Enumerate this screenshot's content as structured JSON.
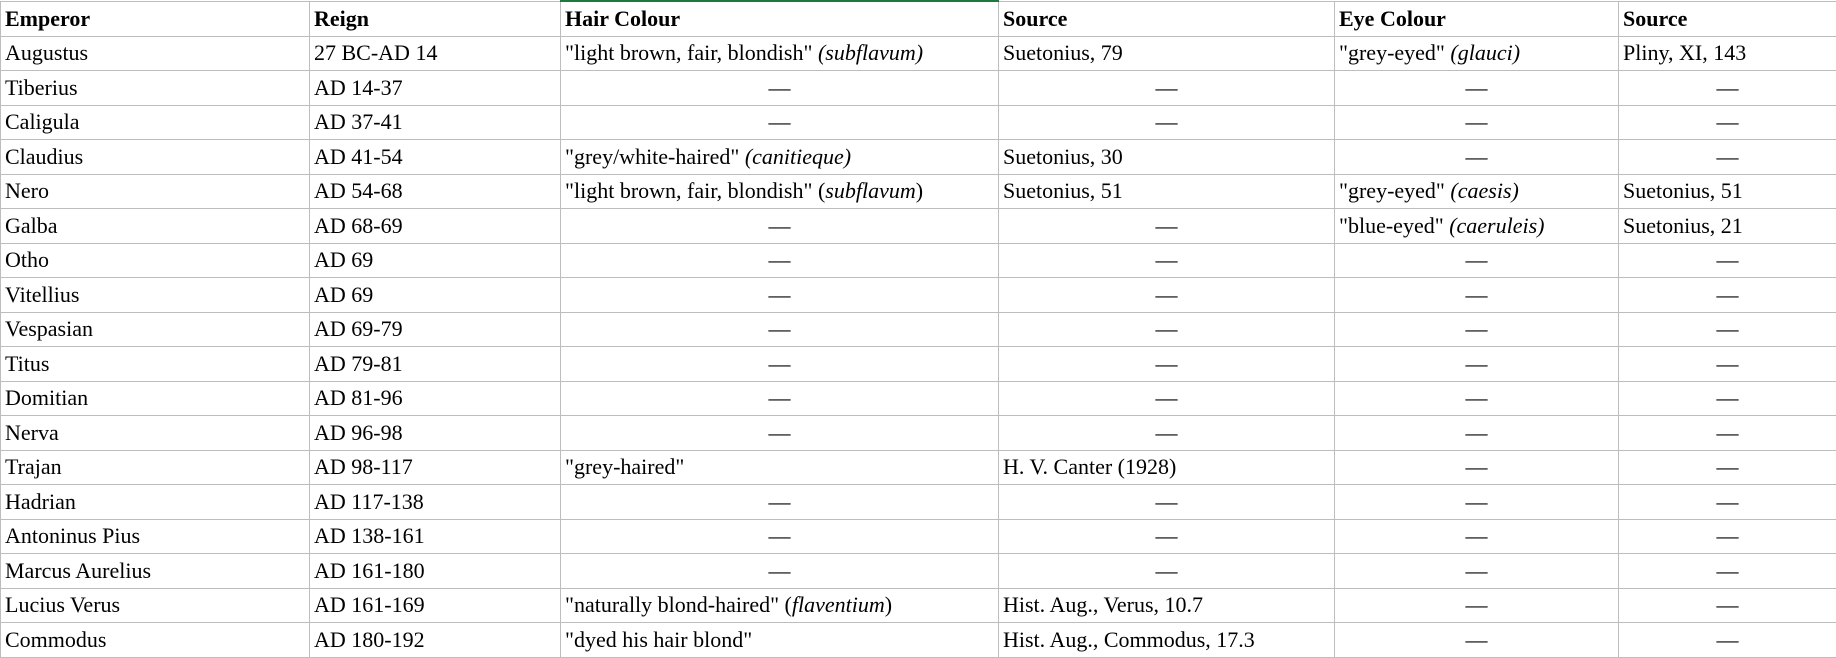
{
  "headers": [
    "Emperor",
    "Reign",
    "Hair Colour",
    "Source",
    "Eye Colour",
    "Source"
  ],
  "selected_color": "#1e7a3c",
  "rows": [
    [
      [
        [
          "Augustus",
          false
        ]
      ],
      [
        [
          "27 BC-AD 14",
          false
        ]
      ],
      [
        [
          "\"light brown, fair, blondish\" ",
          false
        ],
        [
          "(subflavum)",
          true
        ]
      ],
      [
        [
          "Suetonius, 79",
          false
        ]
      ],
      [
        [
          "\"grey-eyed\" ",
          false
        ],
        [
          "(glauci)",
          true
        ]
      ],
      [
        [
          "Pliny, XI, 143",
          false
        ]
      ]
    ],
    [
      [
        [
          "Tiberius",
          false
        ]
      ],
      [
        [
          "AD 14-37",
          false
        ]
      ],
      "—",
      "—",
      "—",
      "—"
    ],
    [
      [
        [
          "Caligula",
          false
        ]
      ],
      [
        [
          "AD 37-41",
          false
        ]
      ],
      "—",
      "—",
      "—",
      "—"
    ],
    [
      [
        [
          "Claudius",
          false
        ]
      ],
      [
        [
          "AD 41-54",
          false
        ]
      ],
      [
        [
          "\"grey/white-haired\" ",
          false
        ],
        [
          "(canitieque)",
          true
        ]
      ],
      [
        [
          "Suetonius, 30",
          false
        ]
      ],
      "—",
      "—"
    ],
    [
      [
        [
          "Nero",
          false
        ]
      ],
      [
        [
          "AD 54-68",
          false
        ]
      ],
      [
        [
          "\"light brown, fair, blondish\" (",
          false
        ],
        [
          "subflavum",
          true
        ],
        [
          ")",
          false
        ]
      ],
      [
        [
          "Suetonius, 51",
          false
        ]
      ],
      [
        [
          "\"grey-eyed\" ",
          false
        ],
        [
          "(caesis)",
          true
        ]
      ],
      [
        [
          "Suetonius, 51",
          false
        ]
      ]
    ],
    [
      [
        [
          "Galba",
          false
        ]
      ],
      [
        [
          "AD 68-69",
          false
        ]
      ],
      "—",
      "—",
      [
        [
          "\"blue-eyed\" ",
          false
        ],
        [
          "(caeruleis)",
          true
        ]
      ],
      [
        [
          "Suetonius, 21",
          false
        ]
      ]
    ],
    [
      [
        [
          "Otho",
          false
        ]
      ],
      [
        [
          "AD 69",
          false
        ]
      ],
      "—",
      "—",
      "—",
      "—"
    ],
    [
      [
        [
          "Vitellius",
          false
        ]
      ],
      [
        [
          "AD 69",
          false
        ]
      ],
      "—",
      "—",
      "—",
      "—"
    ],
    [
      [
        [
          "Vespasian",
          false
        ]
      ],
      [
        [
          "AD 69-79",
          false
        ]
      ],
      "—",
      "—",
      "—",
      "—"
    ],
    [
      [
        [
          "Titus",
          false
        ]
      ],
      [
        [
          "AD 79-81",
          false
        ]
      ],
      "—",
      "—",
      "—",
      "—"
    ],
    [
      [
        [
          "Domitian",
          false
        ]
      ],
      [
        [
          "AD 81-96",
          false
        ]
      ],
      "—",
      "—",
      "—",
      "—"
    ],
    [
      [
        [
          "Nerva",
          false
        ]
      ],
      [
        [
          "AD 96-98",
          false
        ]
      ],
      "—",
      "—",
      "—",
      "—"
    ],
    [
      [
        [
          "Trajan",
          false
        ]
      ],
      [
        [
          "AD 98-117",
          false
        ]
      ],
      [
        [
          "\"grey-haired\"",
          false
        ]
      ],
      [
        [
          "H. V. Canter (1928)",
          false
        ]
      ],
      "—",
      "—"
    ],
    [
      [
        [
          "Hadrian",
          false
        ]
      ],
      [
        [
          "AD 117-138",
          false
        ]
      ],
      "—",
      "—",
      "—",
      "—"
    ],
    [
      [
        [
          "Antoninus Pius",
          false
        ]
      ],
      [
        [
          "AD 138-161",
          false
        ]
      ],
      "—",
      "—",
      "—",
      "—"
    ],
    [
      [
        [
          "Marcus Aurelius",
          false
        ]
      ],
      [
        [
          "AD 161-180",
          false
        ]
      ],
      "—",
      "—",
      "—",
      "—"
    ],
    [
      [
        [
          "Lucius Verus",
          false
        ]
      ],
      [
        [
          "AD 161-169",
          false
        ]
      ],
      [
        [
          "\"naturally blond-haired\" (",
          false
        ],
        [
          "flaventium",
          true
        ],
        [
          ")",
          false
        ]
      ],
      [
        [
          "Hist. Aug., Verus, 10.7",
          false
        ]
      ],
      "—",
      "—"
    ],
    [
      [
        [
          "Commodus",
          false
        ]
      ],
      [
        [
          "AD 180-192",
          false
        ]
      ],
      [
        [
          "\"dyed his hair blond\"",
          false
        ]
      ],
      [
        [
          "Hist. Aug., Commodus, 17.3",
          false
        ]
      ],
      "—",
      "—"
    ]
  ]
}
